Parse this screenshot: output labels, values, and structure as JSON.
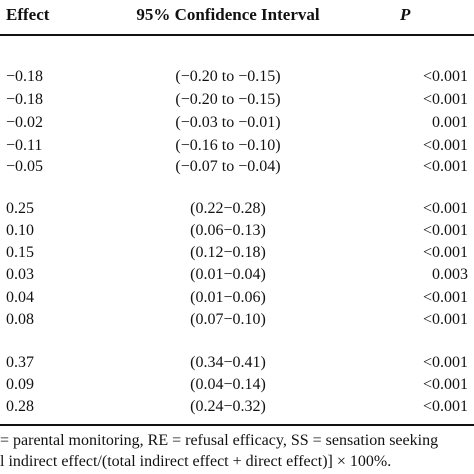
{
  "header": {
    "effect": "Effect",
    "ci": "95% Confidence Interval",
    "p": "P"
  },
  "groups": [
    {
      "rows": [
        {
          "effect": "−0.18",
          "ci": "(−0.20 to −0.15)",
          "p": "<0.001"
        },
        {
          "effect": "−0.18",
          "ci": "(−0.20 to −0.15)",
          "p": "<0.001"
        },
        {
          "effect": "−0.02",
          "ci": "(−0.03 to −0.01)",
          "p": "0.001"
        },
        {
          "effect": "−0.11",
          "ci": "(−0.16 to −0.10)",
          "p": "<0.001"
        },
        {
          "effect": "−0.05",
          "ci": "(−0.07 to −0.04)",
          "p": "<0.001"
        }
      ]
    },
    {
      "rows": [
        {
          "effect": "0.25",
          "ci": "(0.22−0.28)",
          "p": "<0.001"
        },
        {
          "effect": "0.10",
          "ci": "(0.06−0.13)",
          "p": "<0.001"
        },
        {
          "effect": "0.15",
          "ci": "(0.12−0.18)",
          "p": "<0.001"
        },
        {
          "effect": "0.03",
          "ci": "(0.01−0.04)",
          "p": "0.003"
        },
        {
          "effect": "0.04",
          "ci": "(0.01−0.06)",
          "p": "<0.001"
        },
        {
          "effect": "0.08",
          "ci": "(0.07−0.10)",
          "p": "<0.001"
        }
      ]
    },
    {
      "rows": [
        {
          "effect": "0.37",
          "ci": "(0.34−0.41)",
          "p": "<0.001"
        },
        {
          "effect": "0.09",
          "ci": "(0.04−0.14)",
          "p": "<0.001"
        },
        {
          "effect": "0.28",
          "ci": "(0.24−0.32)",
          "p": "<0.001"
        }
      ]
    }
  ],
  "footnotes": [
    "= parental monitoring, RE = refusal efficacy, SS = sensation seeking",
    "l indirect effect/(total indirect effect + direct effect)] × 100%."
  ]
}
